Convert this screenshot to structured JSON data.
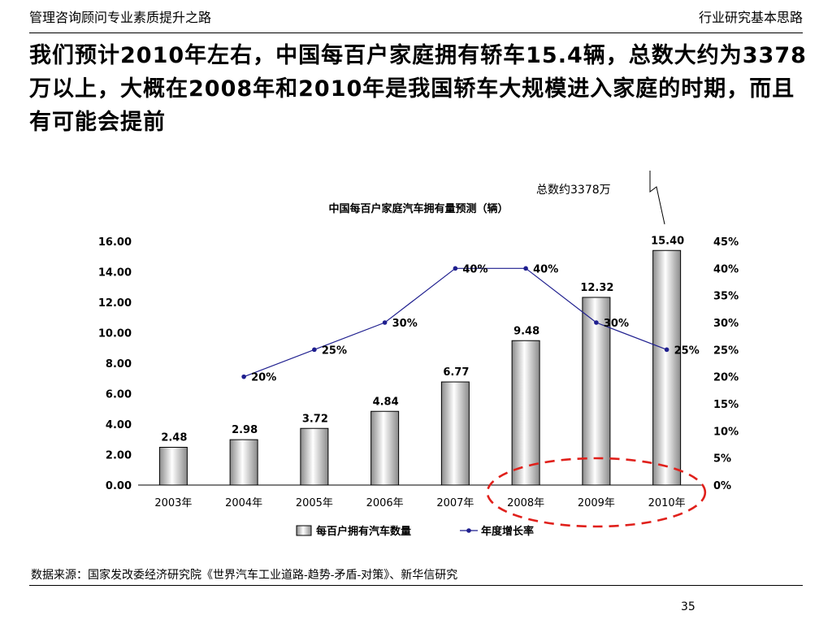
{
  "header": {
    "left": "管理咨询顾问专业素质提升之路",
    "right": "行业研究基本思路"
  },
  "headline": "我们预计2010年左右，中国每百户家庭拥有轿车15.4辆，总数大约为3378万以上，大概在2008年和2010年是我国轿车大规模进入家庭的时期，而且有可能会提前",
  "annotation": "总数约3378万",
  "footer": {
    "source": "数据来源：国家发改委经济研究院《世界汽车工业道路-趋势-矛盾-对策》、新华信研究",
    "page": "35"
  },
  "colors": {
    "line": "#1f1f8f",
    "highlight_ellipse": "#e0201b",
    "bar_fill": "#d8d8d8"
  },
  "chart_data": {
    "type": "bar",
    "title": "中国每百户家庭汽车拥有量预测（辆）",
    "categories": [
      "2003年",
      "2004年",
      "2005年",
      "2006年",
      "2007年",
      "2008年",
      "2009年",
      "2010年"
    ],
    "series": [
      {
        "name": "每百户拥有汽车数量",
        "type": "bar",
        "axis": "left",
        "values": [
          2.48,
          2.98,
          3.72,
          4.84,
          6.77,
          9.48,
          12.32,
          15.4
        ],
        "labels": [
          "2.48",
          "2.98",
          "3.72",
          "4.84",
          "6.77",
          "9.48",
          "12.32",
          "15.40"
        ]
      },
      {
        "name": "年度增长率",
        "type": "line",
        "axis": "right",
        "values": [
          null,
          0.2,
          0.25,
          0.3,
          0.4,
          0.4,
          0.3,
          0.25
        ],
        "labels": [
          "",
          "20%",
          "25%",
          "30%",
          "40%",
          "40%",
          "30%",
          "25%"
        ]
      }
    ],
    "y_left": {
      "ylim": [
        0,
        16
      ],
      "ticks": [
        "0.00",
        "2.00",
        "4.00",
        "6.00",
        "8.00",
        "10.00",
        "12.00",
        "14.00",
        "16.00"
      ]
    },
    "y_right": {
      "ylim": [
        0,
        0.45
      ],
      "ticks": [
        "0%",
        "5%",
        "10%",
        "15%",
        "20%",
        "25%",
        "30%",
        "35%",
        "40%",
        "45%"
      ]
    },
    "highlight": {
      "categories": [
        "2008年",
        "2009年",
        "2010年"
      ]
    },
    "grid": false,
    "legend": "bottom"
  }
}
